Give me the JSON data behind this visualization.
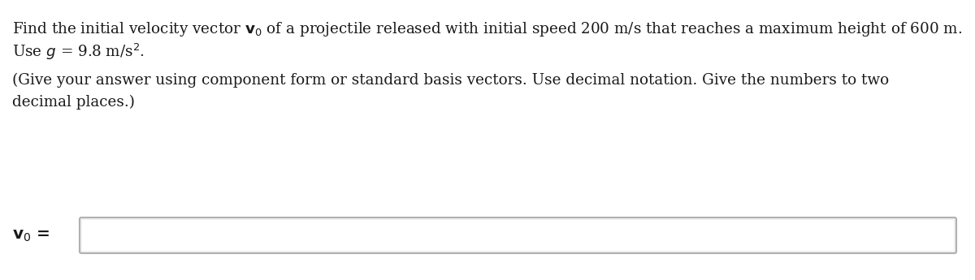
{
  "bg_color": "#ffffff",
  "text_color": "#1a1a1a",
  "font_size_main": 13.2,
  "font_size_label": 14.5,
  "line1a": "Find the initial velocity vector ",
  "line1b": " of a projectile released with initial speed 200 m/s that reaches a maximum height of 600 m.",
  "line2": "Use ",
  "line2b": " = 9.8 m/s",
  "line3": "(Give your answer using component form or standard basis vectors. Use decimal notation. Give the numbers to two",
  "line4": "decimal places.)",
  "label_bold": "v",
  "label_rest": " =",
  "input_box_facecolor": "#f0f0f0",
  "input_box_edgecolor": "#b0b0b0",
  "input_box_inner_color": "#ffffff"
}
